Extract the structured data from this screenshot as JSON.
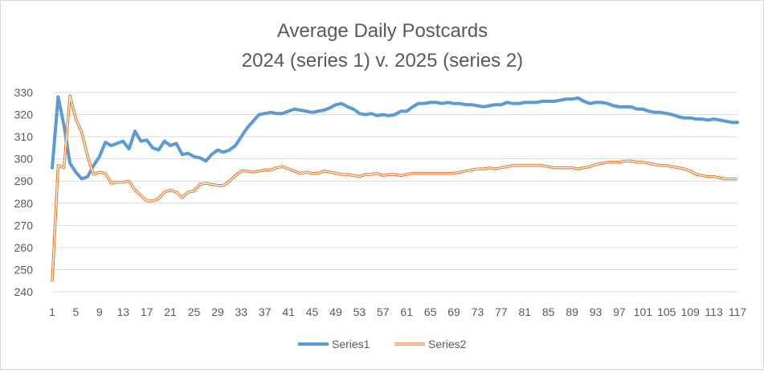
{
  "chart_data": {
    "type": "line",
    "title": "Average Daily Postcards",
    "subtitle": "2024 (series 1) v. 2025 (series 2)",
    "xlabel": "",
    "ylabel": "",
    "ylim": [
      240,
      330
    ],
    "yticks": [
      "240",
      "250",
      "260",
      "270",
      "280",
      "290",
      "300",
      "310",
      "320",
      "330"
    ],
    "xticks": [
      "1",
      "5",
      "9",
      "13",
      "17",
      "21",
      "25",
      "29",
      "33",
      "37",
      "41",
      "45",
      "49",
      "53",
      "57",
      "61",
      "65",
      "69",
      "73",
      "77",
      "81",
      "85",
      "89",
      "93",
      "97",
      "101",
      "105",
      "109",
      "113",
      "117"
    ],
    "x": [
      1,
      2,
      3,
      4,
      5,
      6,
      7,
      8,
      9,
      10,
      11,
      12,
      13,
      14,
      15,
      16,
      17,
      18,
      19,
      20,
      21,
      22,
      23,
      24,
      25,
      26,
      27,
      28,
      29,
      30,
      31,
      32,
      33,
      34,
      35,
      36,
      37,
      38,
      39,
      40,
      41,
      42,
      43,
      44,
      45,
      46,
      47,
      48,
      49,
      50,
      51,
      52,
      53,
      54,
      55,
      56,
      57,
      58,
      59,
      60,
      61,
      62,
      63,
      64,
      65,
      66,
      67,
      68,
      69,
      70,
      71,
      72,
      73,
      74,
      75,
      76,
      77,
      78,
      79,
      80,
      81,
      82,
      83,
      84,
      85,
      86,
      87,
      88,
      89,
      90,
      91,
      92,
      93,
      94,
      95,
      96,
      97,
      98,
      99,
      100,
      101,
      102,
      103,
      104,
      105,
      106,
      107,
      108,
      109,
      110,
      111,
      112,
      113,
      114,
      115,
      116,
      117
    ],
    "grid": true,
    "legend_position": "bottom",
    "series": [
      {
        "name": "Series1",
        "color": "#5b9bd5",
        "style": "solid",
        "values": [
          296,
          328,
          315,
          298,
          294,
          291,
          292,
          297,
          301,
          307.5,
          306,
          307,
          308,
          304.5,
          312.5,
          308,
          308.5,
          305,
          304,
          308,
          306,
          307,
          302,
          302.5,
          301,
          300.5,
          299,
          302,
          304,
          303,
          304,
          306,
          310,
          314,
          317,
          320,
          320.5,
          321,
          320.5,
          320.5,
          321.5,
          322.5,
          322,
          321.5,
          321,
          321.5,
          322,
          323,
          324.5,
          325,
          323.5,
          322.5,
          320.5,
          320,
          320.5,
          319.5,
          320,
          319.5,
          320,
          321.5,
          321.5,
          323.5,
          325,
          325,
          325.5,
          325.5,
          325,
          325.5,
          325,
          325,
          324.5,
          324.5,
          324,
          323.5,
          324,
          324.5,
          324.5,
          325.5,
          325,
          325,
          325.5,
          325.5,
          325.5,
          326,
          326,
          326,
          326.5,
          327,
          327,
          327.5,
          326,
          325,
          325.5,
          325.5,
          325,
          324,
          323.5,
          323.5,
          323.5,
          322.5,
          322.5,
          321.5,
          321,
          321,
          320.5,
          320,
          319,
          318.5,
          318.5,
          318,
          318,
          317.5,
          318,
          317.5,
          317,
          316.5,
          316.5
        ]
      },
      {
        "name": "Series2",
        "color": "#ed7d31",
        "style": "double",
        "values": [
          244.5,
          297,
          296,
          328.5,
          318,
          312,
          301,
          293,
          294,
          293.5,
          289,
          289.5,
          289.5,
          290,
          286,
          283.5,
          281,
          281,
          282,
          285,
          286,
          285,
          282.5,
          285,
          285.5,
          288.5,
          289,
          288.5,
          288,
          288,
          290,
          292.5,
          294.5,
          294.5,
          294,
          294.5,
          295,
          295,
          296,
          296.5,
          295.5,
          294.5,
          293.5,
          294,
          293.5,
          293.5,
          294.5,
          294,
          293.5,
          293,
          293,
          292.5,
          292,
          293,
          293,
          293.5,
          292.5,
          293,
          293,
          292.5,
          293,
          293.5,
          293.5,
          293.5,
          293.5,
          293.5,
          293.5,
          293.5,
          293.5,
          294,
          294.5,
          295,
          295.5,
          295.5,
          296,
          295.5,
          296,
          296.5,
          297,
          297,
          297,
          297,
          297,
          297,
          296.5,
          296,
          296,
          296,
          296,
          295.5,
          296,
          296.5,
          297.5,
          298,
          298.5,
          298.5,
          298.5,
          299,
          299,
          298.5,
          298.5,
          298,
          297.5,
          297,
          297,
          296.5,
          296,
          295.5,
          294.5,
          293,
          292.5,
          292,
          292,
          291.5,
          291,
          291,
          291
        ]
      }
    ]
  }
}
